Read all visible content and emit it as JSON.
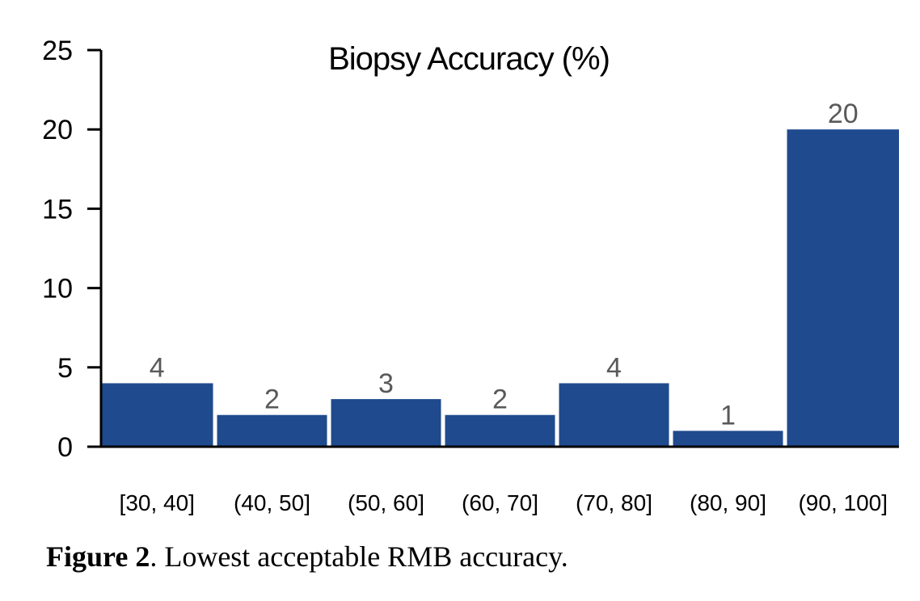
{
  "chart_data": {
    "type": "bar",
    "title": "Biopsy Accuracy (%)",
    "categories": [
      "[30, 40]",
      "(40, 50]",
      "(50, 60]",
      "(60, 70]",
      "(70, 80]",
      "(80, 90]",
      "(90, 100]"
    ],
    "values": [
      4,
      2,
      3,
      2,
      4,
      1,
      20
    ],
    "data_labels": [
      "4",
      "2",
      "3",
      "2",
      "4",
      "1",
      "20"
    ],
    "ylim": [
      0,
      25
    ],
    "yticks": [
      0,
      5,
      10,
      15,
      20,
      25
    ],
    "xlabel": "",
    "ylabel": "",
    "grid": false,
    "bar_color": "#1F4A8E",
    "label_color": "#595959"
  },
  "caption": {
    "label": "Figure 2",
    "text": ". Lowest acceptable RMB accuracy."
  }
}
